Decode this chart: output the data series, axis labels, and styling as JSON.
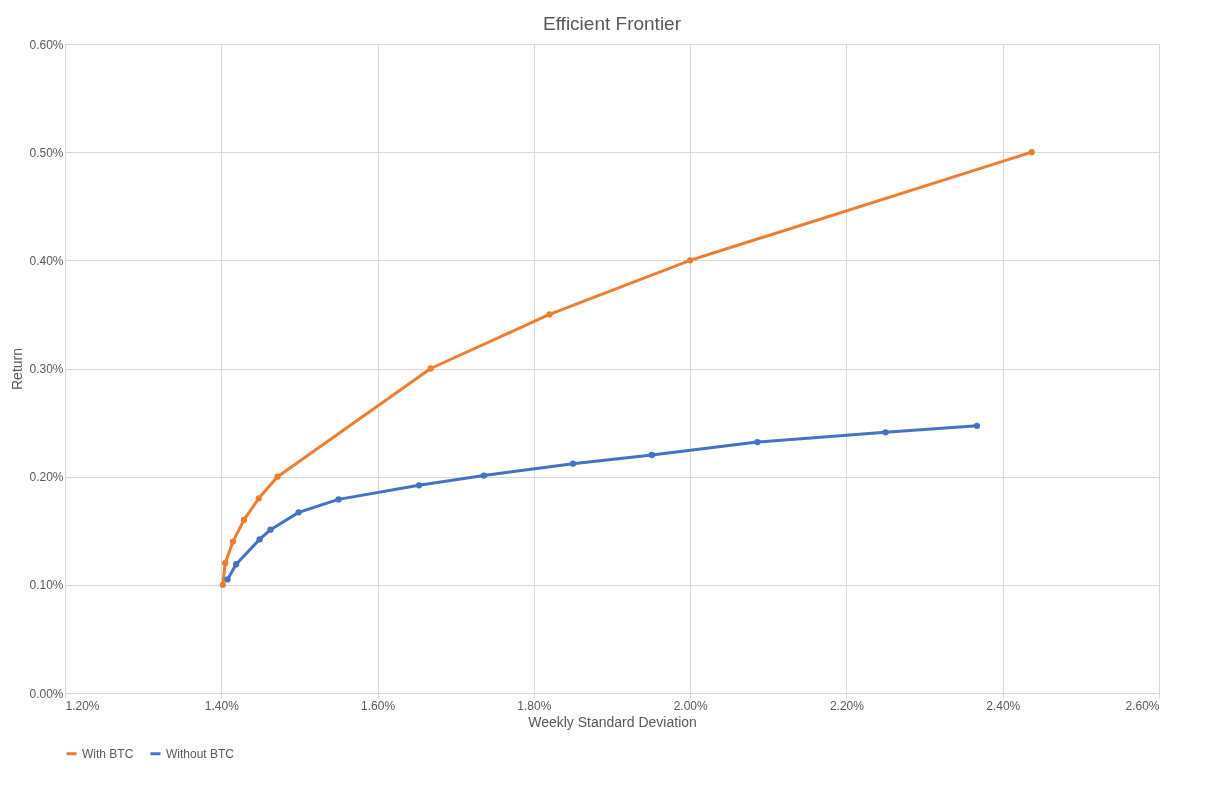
{
  "chart_data": {
    "type": "line",
    "title": "Efficient Frontier",
    "xlabel": "Weekly Standard Deviation",
    "ylabel": "Return",
    "xlim": [
      1.2,
      2.6
    ],
    "xticks": [
      {
        "value": 1.2,
        "label": "1.20%"
      },
      {
        "value": 1.4,
        "label": "1.40%"
      },
      {
        "value": 1.6,
        "label": "1.60%"
      },
      {
        "value": 1.8,
        "label": "1.80%"
      },
      {
        "value": 2.0,
        "label": "2.00%"
      },
      {
        "value": 2.2,
        "label": "2.20%"
      },
      {
        "value": 2.4,
        "label": "2.40%"
      },
      {
        "value": 2.6,
        "label": "2.60%"
      }
    ],
    "ylim": [
      0,
      0.6
    ],
    "yticks": [
      {
        "value": 0,
        "label": "0.00%"
      },
      {
        "value": 0.1,
        "label": "0.10%"
      },
      {
        "value": 0.2,
        "label": "0.20%"
      },
      {
        "value": 0.3,
        "label": "0.30%"
      },
      {
        "value": 0.4,
        "label": "0.40%"
      },
      {
        "value": 0.5,
        "label": "0.50%"
      },
      {
        "value": 0.6,
        "label": "0.60%"
      }
    ],
    "grid": true,
    "legend": "bottom",
    "marker": "circle",
    "line_style": "solid",
    "series": [
      {
        "name": "With BTC",
        "color": "#ed7d31",
        "x": [
          1.402,
          1.405,
          1.415,
          1.429,
          1.448,
          1.472,
          1.668,
          1.82,
          2.0,
          2.437
        ],
        "values": [
          0.1,
          0.12,
          0.14,
          0.16,
          0.18,
          0.2,
          0.3,
          0.35,
          0.4,
          0.5
        ]
      },
      {
        "name": "Without BTC",
        "color": "#4472c4",
        "x": [
          1.408,
          1.419,
          1.449,
          1.463,
          1.499,
          1.55,
          1.653,
          1.736,
          1.85,
          1.951,
          2.086,
          2.25,
          2.367
        ],
        "values": [
          0.105,
          0.119,
          0.142,
          0.151,
          0.167,
          0.179,
          0.192,
          0.201,
          0.212,
          0.22,
          0.232,
          0.241,
          0.247
        ]
      }
    ]
  }
}
